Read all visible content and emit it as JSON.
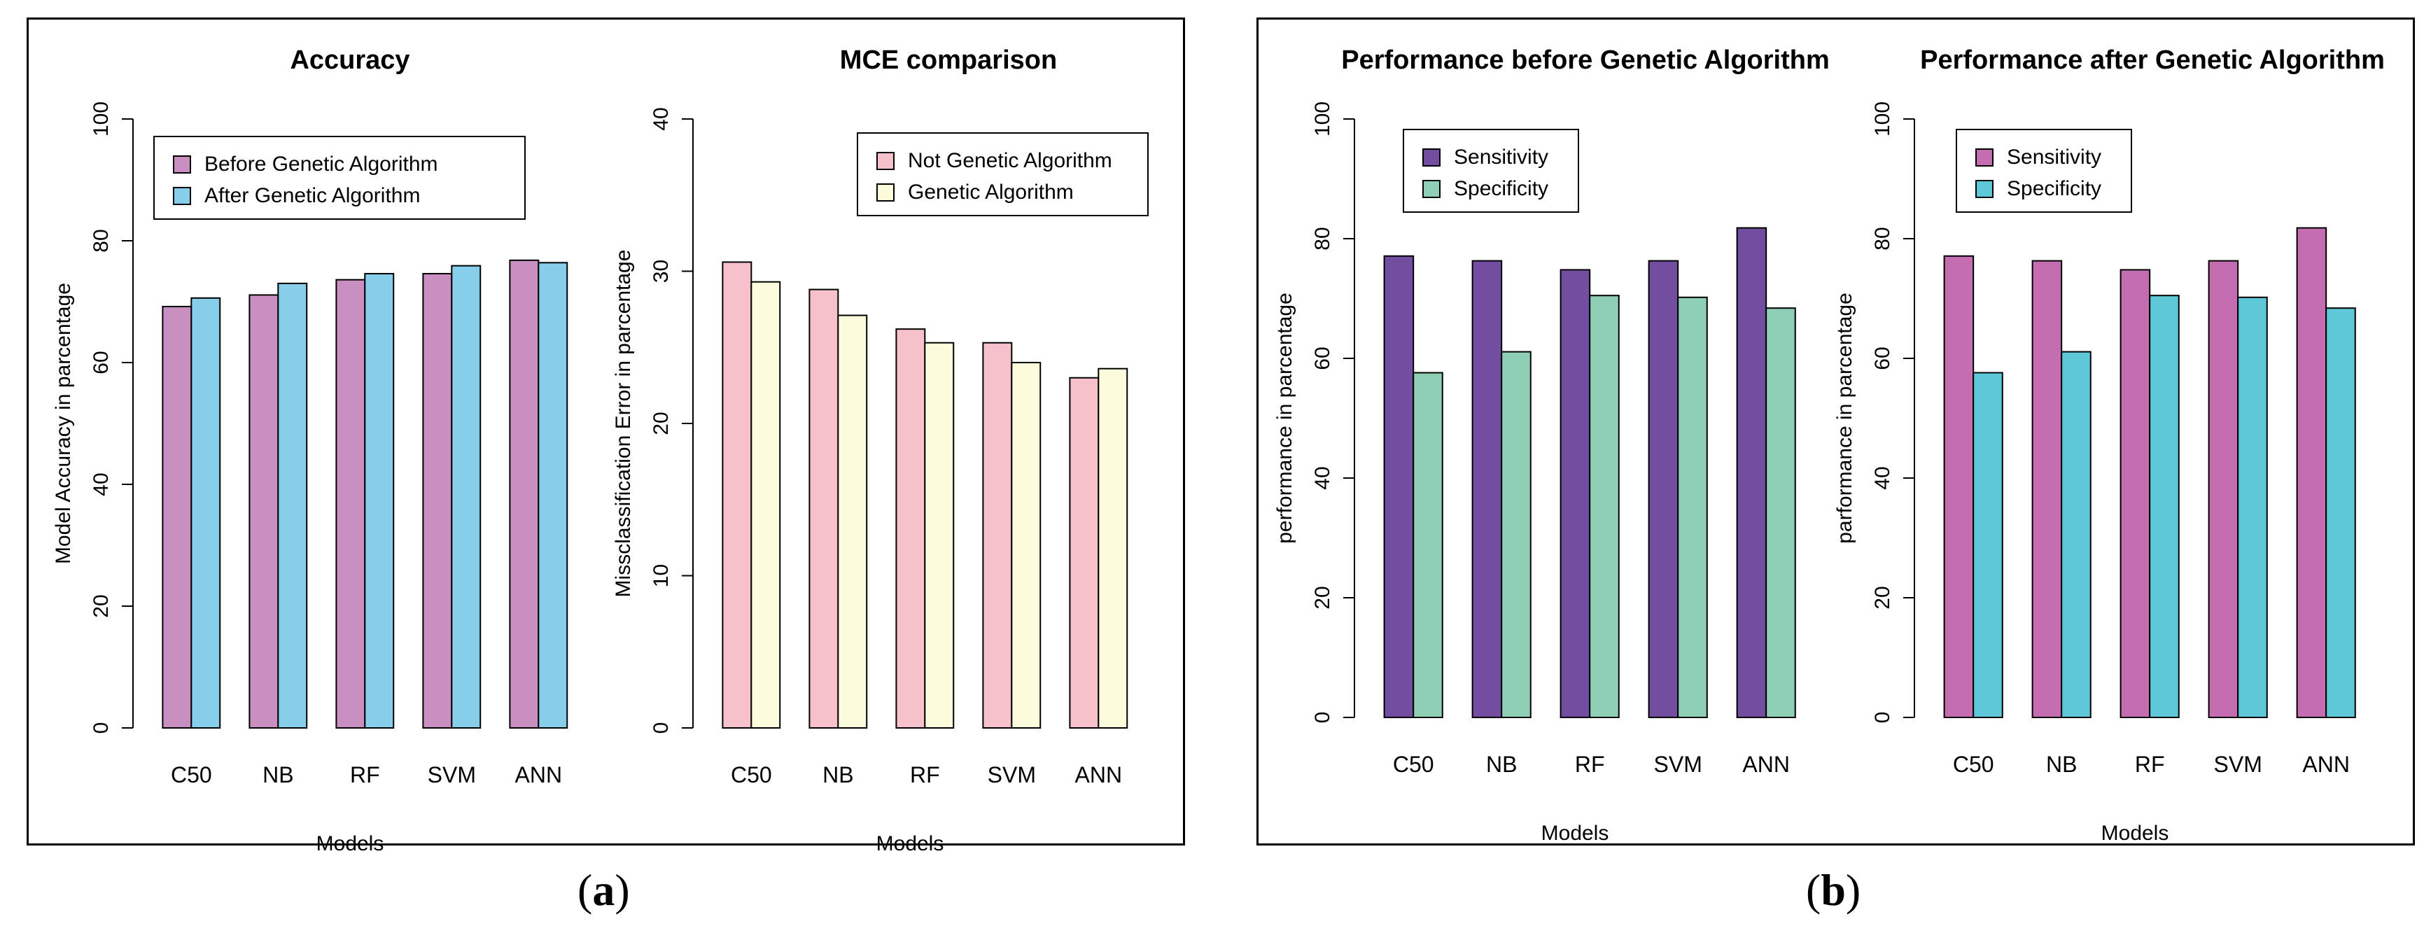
{
  "figure": {
    "panel_a_label": {
      "open": "(",
      "letter": "a",
      "close": ")"
    },
    "panel_b_label": {
      "open": "(",
      "letter": "b",
      "close": ")"
    }
  },
  "chart_data": [
    {
      "id": "accuracy",
      "type": "bar",
      "title": "Accuracy",
      "xlabel": "Models",
      "ylabel": "Model Accuracy in parcentage",
      "categories": [
        "C50",
        "NB",
        "RF",
        "SVM",
        "ANN"
      ],
      "series": [
        {
          "name": "Before Genetic Algorithm",
          "values": [
            69.2,
            71.1,
            73.6,
            74.6,
            76.8
          ],
          "color": "#c98fc0"
        },
        {
          "name": "After Genetic Algorithm",
          "values": [
            70.6,
            73.0,
            74.6,
            75.9,
            76.4
          ],
          "color": "#87ceea"
        }
      ],
      "ylim": [
        0,
        100
      ],
      "yticks": [
        0,
        20,
        40,
        60,
        80,
        100
      ],
      "legend_position": "top-left"
    },
    {
      "id": "mce",
      "type": "bar",
      "title": "MCE comparison",
      "xlabel": "Models",
      "ylabel": "Missclassification Error in parcentage",
      "categories": [
        "C50",
        "NB",
        "RF",
        "SVM",
        "ANN"
      ],
      "series": [
        {
          "name": "Not Genetic Algorithm",
          "values": [
            30.6,
            28.8,
            26.2,
            25.3,
            23.0
          ],
          "color": "#f6c1cb"
        },
        {
          "name": "Genetic Algorithm",
          "values": [
            29.3,
            27.1,
            25.3,
            24.0,
            23.6
          ],
          "color": "#fcfbdc"
        }
      ],
      "ylim": [
        0,
        40
      ],
      "yticks": [
        0,
        10,
        20,
        30,
        40
      ],
      "legend_position": "top-right"
    },
    {
      "id": "perf_before",
      "type": "bar",
      "title": "Performance before Genetic Algorithm",
      "xlabel": "Models",
      "ylabel": "performance in parcentage",
      "categories": [
        "C50",
        "NB",
        "RF",
        "SVM",
        "ANN"
      ],
      "series": [
        {
          "name": "Sensitivity",
          "values": [
            77.1,
            76.3,
            74.8,
            76.3,
            81.8
          ],
          "color": "#734d9f"
        },
        {
          "name": "Specificity",
          "values": [
            57.6,
            61.1,
            70.5,
            70.2,
            68.4
          ],
          "color": "#8ecfb6"
        }
      ],
      "ylim": [
        0,
        100
      ],
      "yticks": [
        0,
        20,
        40,
        60,
        80,
        100
      ],
      "legend_position": "top-left"
    },
    {
      "id": "perf_after",
      "type": "bar",
      "title": "Performance after Genetic Algorithm",
      "xlabel": "Models",
      "ylabel": "parformance in parcentage",
      "categories": [
        "C50",
        "NB",
        "RF",
        "SVM",
        "ANN"
      ],
      "series": [
        {
          "name": "Sensitivity",
          "values": [
            77.1,
            76.3,
            74.8,
            76.3,
            81.8
          ],
          "color": "#c46db0"
        },
        {
          "name": "Specificity",
          "values": [
            57.6,
            61.1,
            70.5,
            70.2,
            68.4
          ],
          "color": "#5ec8d8"
        }
      ],
      "ylim": [
        0,
        100
      ],
      "yticks": [
        0,
        20,
        40,
        60,
        80,
        100
      ],
      "legend_position": "top-left"
    }
  ]
}
